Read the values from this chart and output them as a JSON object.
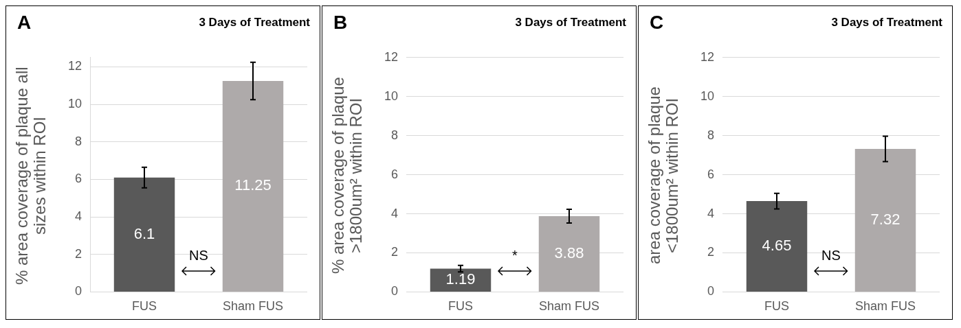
{
  "chart_data": [
    {
      "type": "bar",
      "title": "3 Days of Treatment",
      "ylabel": "% area coverage of plaque all sizes within ROI",
      "categories": [
        "FUS",
        "Sham FUS"
      ],
      "values": [
        6.1,
        11.25
      ],
      "colors": [
        "#595959",
        "#aeaaaa"
      ],
      "errors": [
        0.55,
        1.0
      ],
      "ylim": [
        0,
        12.5
      ],
      "yticks": [
        0,
        2,
        4,
        6,
        8,
        10,
        12
      ],
      "grid": "y",
      "data_labels": true,
      "annotations": [
        "A",
        "NS"
      ]
    },
    {
      "type": "bar",
      "title": "3 Days of Treatment",
      "ylabel": "% area coverage of plaque >1800um² within ROI",
      "categories": [
        "FUS",
        "Sham FUS"
      ],
      "values": [
        1.19,
        3.88
      ],
      "colors": [
        "#595959",
        "#aeaaaa"
      ],
      "errors": [
        0.17,
        0.35
      ],
      "ylim": [
        0,
        12
      ],
      "yticks": [
        0,
        2,
        4,
        6,
        8,
        10,
        12
      ],
      "grid": "y",
      "data_labels": true,
      "annotations": [
        "B",
        "*"
      ]
    },
    {
      "type": "bar",
      "title": "3 Days of Treatment",
      "ylabel": "area coverage of plaque <1800um² within ROI",
      "categories": [
        "FUS",
        "Sham FUS"
      ],
      "values": [
        4.65,
        7.32
      ],
      "colors": [
        "#595959",
        "#aeaaaa"
      ],
      "errors": [
        0.4,
        0.65
      ],
      "ylim": [
        0,
        12
      ],
      "yticks": [
        0,
        2,
        4,
        6,
        8,
        10,
        12
      ],
      "grid": "y",
      "data_labels": true,
      "annotations": [
        "C",
        "NS"
      ]
    }
  ]
}
